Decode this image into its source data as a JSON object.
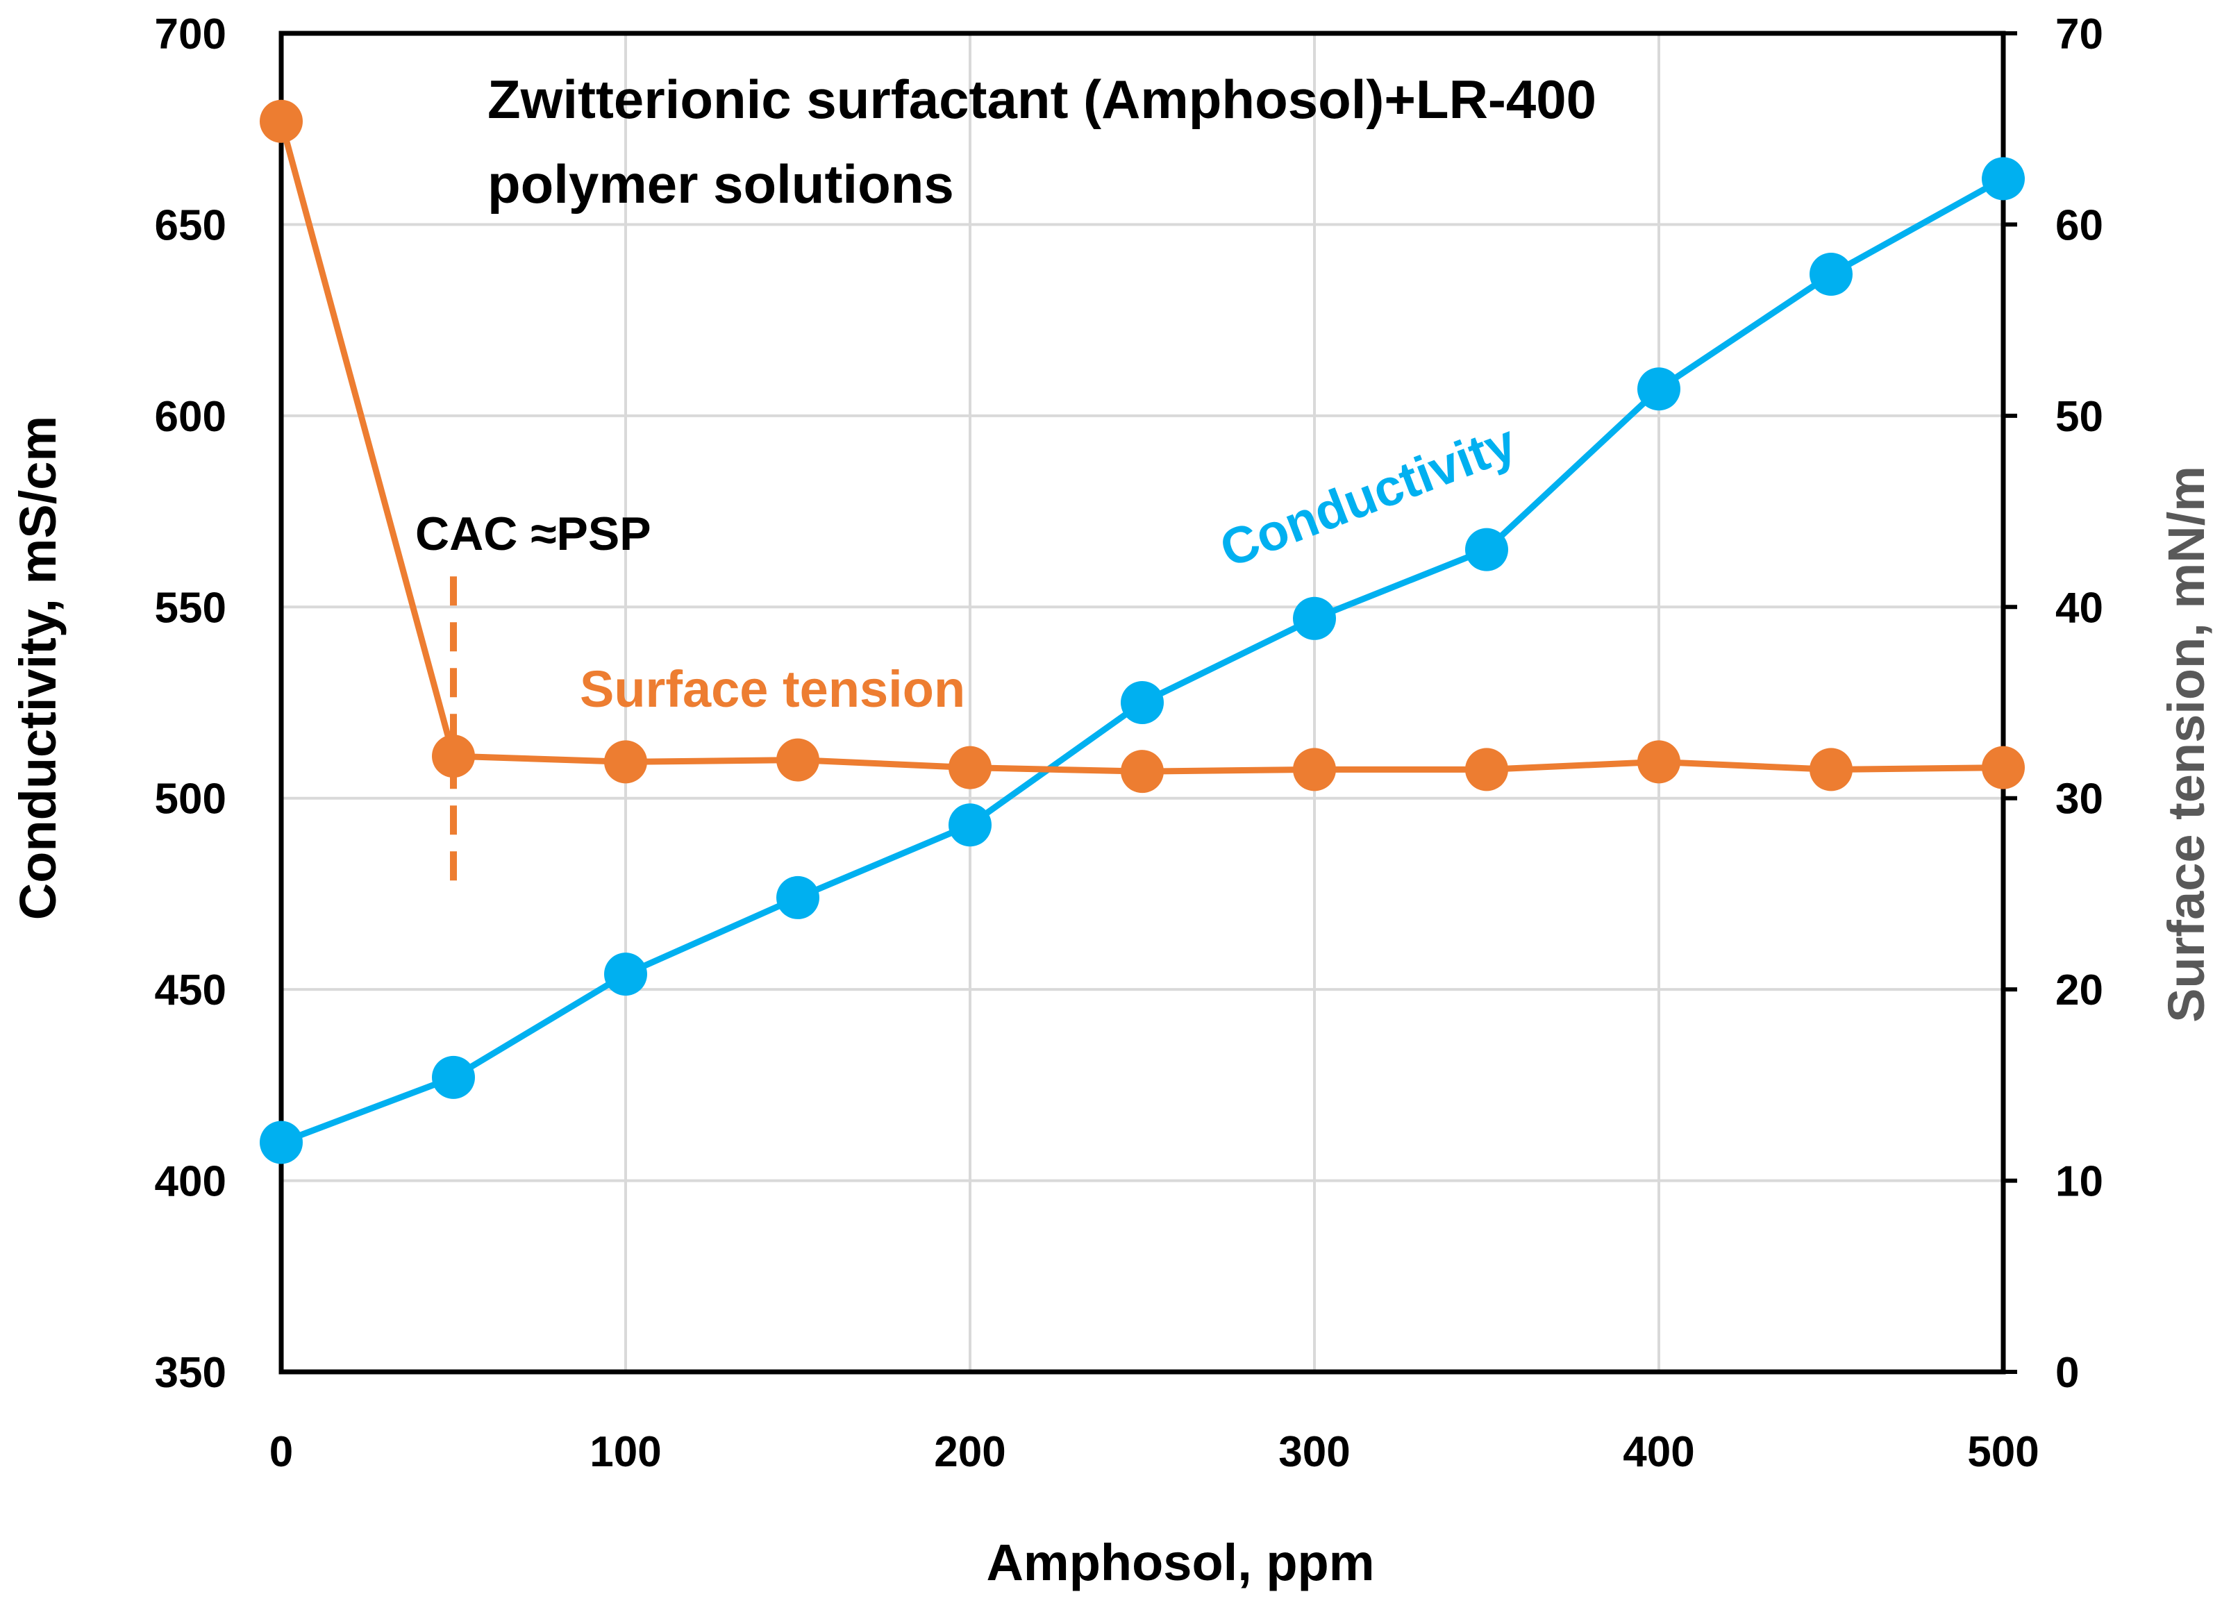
{
  "chart_data": {
    "type": "line",
    "title_lines": [
      "Zwitterionic surfactant (Amphosol)+LR-400",
      "polymer solutions"
    ],
    "xlabel": "Amphosol, ppm",
    "ylabel_left": "Conductivity, mS/cm",
    "ylabel_right": "Surface tension, mN/m",
    "xlim": [
      0,
      500
    ],
    "ylim_left": [
      350,
      700
    ],
    "ylim_right": [
      0,
      70
    ],
    "x_ticks": [
      0,
      100,
      200,
      300,
      400,
      500
    ],
    "y_left_ticks": [
      350,
      400,
      450,
      500,
      550,
      600,
      650,
      700
    ],
    "y_right_ticks": [
      0,
      10,
      20,
      30,
      40,
      50,
      60,
      70
    ],
    "grid": true,
    "x": [
      0,
      50,
      100,
      150,
      200,
      250,
      300,
      350,
      400,
      450,
      500
    ],
    "series": [
      {
        "name": "Conductivity",
        "axis": "left",
        "color": "#00b0f0",
        "values": [
          410,
          427,
          454,
          474,
          493,
          525,
          547,
          565,
          607,
          637,
          662
        ]
      },
      {
        "name": "Surface tension",
        "axis": "right",
        "color": "#ed7d31",
        "values": [
          65.4,
          32.2,
          31.9,
          32.0,
          31.6,
          31.4,
          31.5,
          31.5,
          31.9,
          31.5,
          31.6
        ]
      }
    ],
    "annotations": [
      {
        "text": "CAC ≈PSP",
        "x": 50,
        "color": "#000000"
      }
    ],
    "series_labels": [
      {
        "text": "Surface tension",
        "color": "#ed7d31"
      },
      {
        "text": "Conductivity",
        "color": "#00b0f0",
        "rotation_deg": -21
      }
    ],
    "colors": {
      "right_axis_title": "#595959",
      "grid": "#d9d9d9",
      "axis": "#000000",
      "cac_line": "#ed7d31"
    }
  }
}
